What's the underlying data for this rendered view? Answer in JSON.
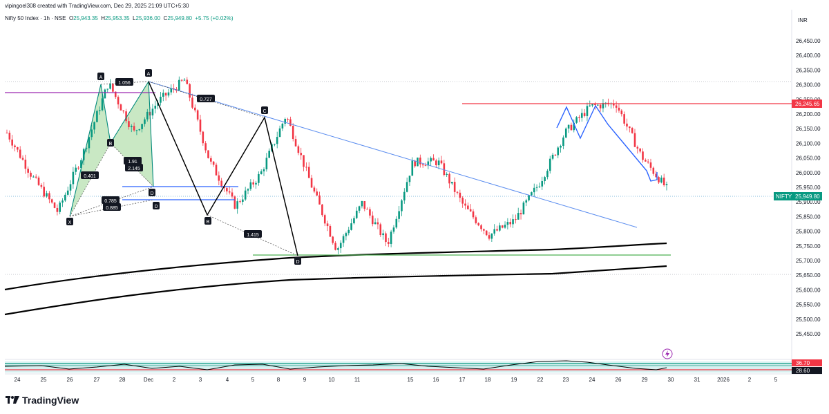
{
  "header": {
    "attribution": "vipingoel308 created with TradingView.com, Dec 29, 2025 21:09 UTC+5:30",
    "symbol": "Nifty 50 Index · 1h · NSE",
    "ohlc": {
      "o_label": "O",
      "o": "25,943.35",
      "h_label": "H",
      "h": "25,953.35",
      "l_label": "L",
      "l": "25,936.00",
      "c_label": "C",
      "c": "25,949.80",
      "change": "+5.75 (+0.02%)"
    }
  },
  "currency": "INR",
  "price_axis": [
    "26,450.00",
    "26,400.00",
    "26,350.00",
    "26,300.00",
    "26,250.00",
    "26,200.00",
    "26,150.00",
    "26,100.00",
    "26,050.00",
    "26,000.00",
    "25,950.00",
    "25,900.00",
    "25,850.00",
    "25,800.00",
    "25,750.00",
    "25,700.00",
    "25,650.00",
    "25,600.00",
    "25,550.00",
    "25,500.00",
    "25,450.00"
  ],
  "time_axis": [
    "24",
    "25",
    "26",
    "27",
    "28",
    "Dec",
    "2",
    "3",
    "4",
    "5",
    "8",
    "9",
    "10",
    "11",
    "15",
    "16",
    "17",
    "18",
    "19",
    "22",
    "23",
    "24",
    "26",
    "29",
    "30",
    "31",
    "2026",
    "2",
    "5"
  ],
  "price_tags": {
    "resistance": "26,245.65",
    "current_label": "NIFTY",
    "current": "25,949.80"
  },
  "indicator_tags": [
    "36.70",
    "28.60"
  ],
  "pattern_labels": {
    "points": [
      "X",
      "A",
      "B",
      "A",
      "D",
      "D",
      "C",
      "B",
      "D"
    ],
    "ratios": [
      "1.056",
      "0.727",
      "0.401",
      "1.91",
      "2.145",
      "0.785",
      "0.885",
      "1.415"
    ]
  },
  "footer": {
    "brand": "TradingView"
  },
  "colors": {
    "up": "#089981",
    "down": "#f23645",
    "resistance": "#f23645",
    "trendline": "#5b8def",
    "support": "#4caf50",
    "harmonic_fill": "#b7e0b0",
    "pattern": "#000000",
    "ma": "#000000"
  },
  "chart_data": {
    "type": "candlestick",
    "title": "Nifty 50 Index · 1h · NSE",
    "xlabel": "",
    "ylabel": "",
    "ylim": [
      25440,
      26480
    ],
    "grid": false,
    "approx_close_path": [
      {
        "date": "24 Nov",
        "price": 26140
      },
      {
        "date": "25 Nov",
        "price": 25990
      },
      {
        "date": "26 Nov",
        "price": 25870
      },
      {
        "date": "26 Nov",
        "price": 26070
      },
      {
        "date": "27 Nov",
        "price": 26310
      },
      {
        "date": "27 Nov",
        "price": 26140
      },
      {
        "date": "28 Nov",
        "price": 26250
      },
      {
        "date": "1 Dec",
        "price": 26320
      },
      {
        "date": "2 Dec",
        "price": 26040
      },
      {
        "date": "3 Dec",
        "price": 25890
      },
      {
        "date": "4 Dec",
        "price": 26000
      },
      {
        "date": "5 Dec",
        "price": 26200
      },
      {
        "date": "8 Dec",
        "price": 25960
      },
      {
        "date": "9 Dec",
        "price": 25740
      },
      {
        "date": "10 Dec",
        "price": 25900
      },
      {
        "date": "11 Dec",
        "price": 25760
      },
      {
        "date": "12 Dec",
        "price": 26040
      },
      {
        "date": "15 Dec",
        "price": 26040
      },
      {
        "date": "16 Dec",
        "price": 25890
      },
      {
        "date": "17 Dec",
        "price": 25790
      },
      {
        "date": "18 Dec",
        "price": 25840
      },
      {
        "date": "19 Dec",
        "price": 25970
      },
      {
        "date": "22 Dec",
        "price": 26140
      },
      {
        "date": "23 Dec",
        "price": 26230
      },
      {
        "date": "24 Dec",
        "price": 26240
      },
      {
        "date": "26 Dec",
        "price": 26060
      },
      {
        "date": "29 Dec",
        "price": 25949.8
      }
    ],
    "levels": {
      "resistance": 26245.65,
      "support": 25760,
      "current": 25949.8
    },
    "ohlc_last": {
      "open": 25943.35,
      "high": 25953.35,
      "low": 25936.0,
      "close": 25949.8
    }
  }
}
